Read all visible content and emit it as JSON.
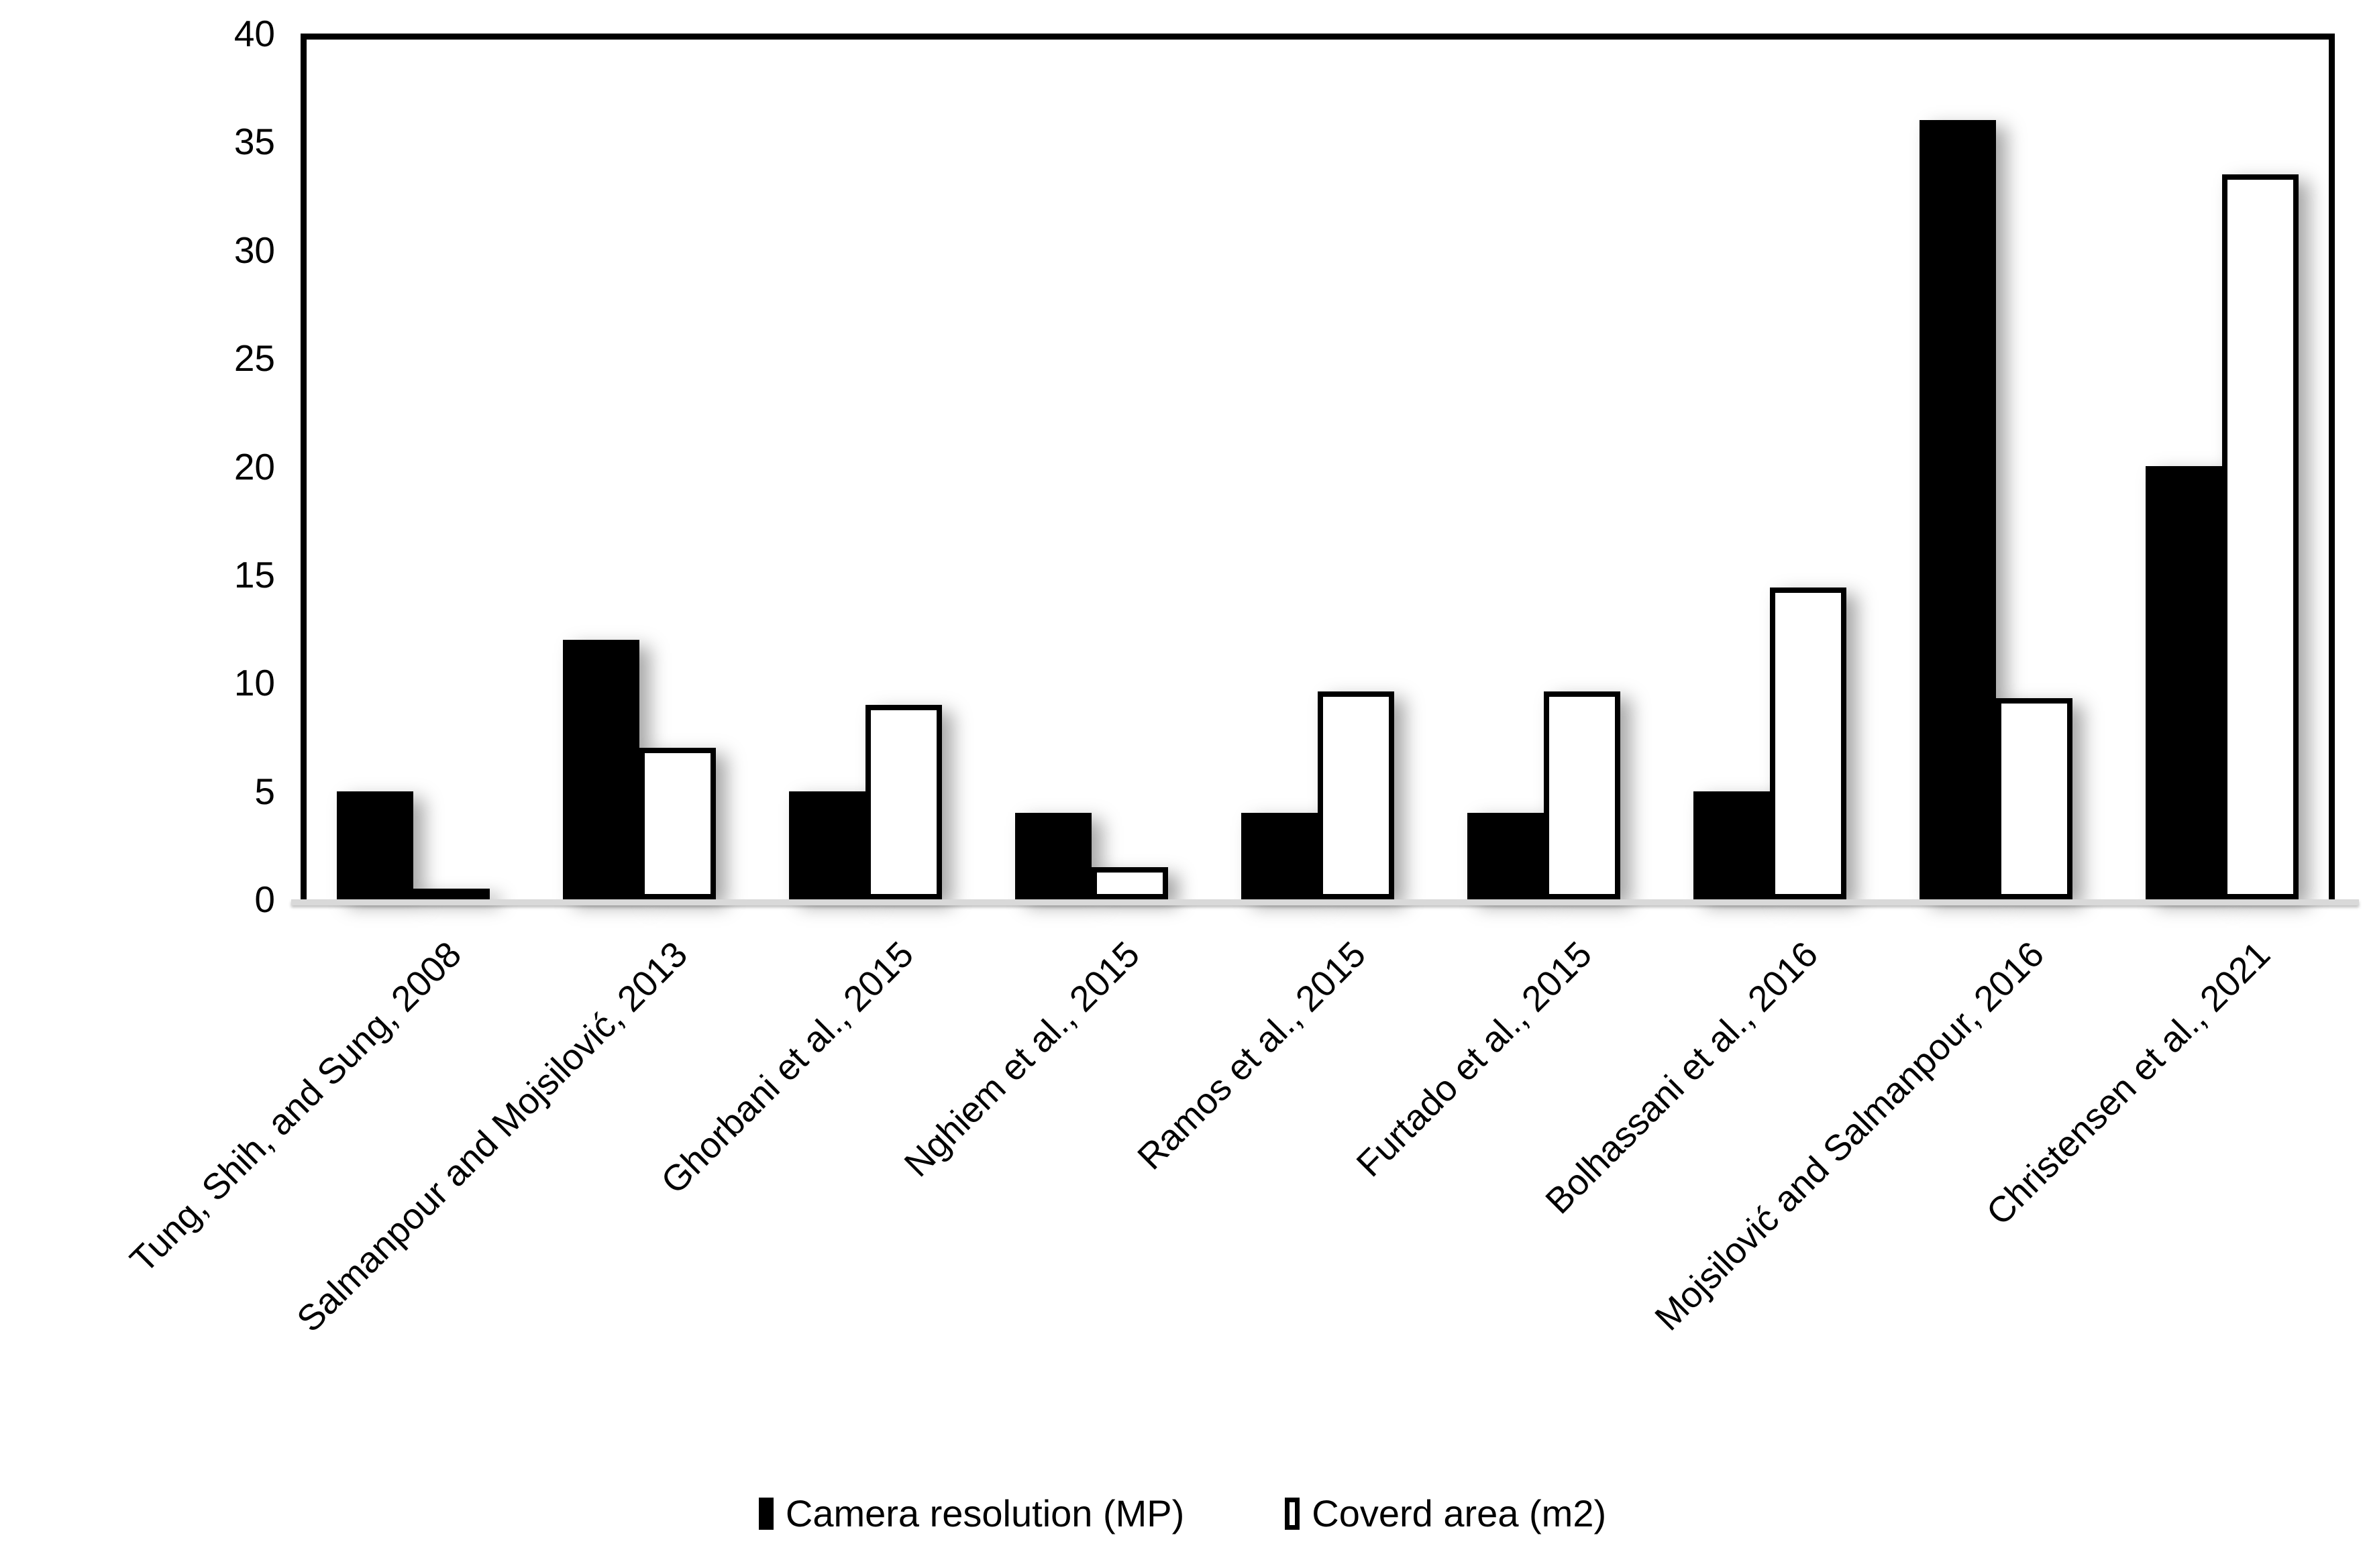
{
  "chart_data": {
    "type": "bar",
    "title": "",
    "xlabel": "",
    "ylabel": "",
    "categories": [
      "Tung, Shih, and Sung, 2008",
      "Salmanpour and Mojsilović, 2013",
      "Ghorbani et al., 2015",
      "Nghiem et al., 2015",
      "Ramos et al., 2015",
      "Furtado et al., 2015",
      "Bolhassani et al., 2016",
      "Mojsilović and Salmanpour, 2016",
      "Christensen et al., 2021"
    ],
    "series": [
      {
        "name": "Camera resolution (MP)",
        "fill": "#000000",
        "outline": "#000000",
        "values": [
          5,
          12,
          5,
          4,
          4,
          4,
          5,
          36,
          20
        ]
      },
      {
        "name": "Coverd area (m2)",
        "fill": "#ffffff",
        "outline": "#000000",
        "values": [
          0.2,
          7,
          9,
          1.5,
          9.6,
          9.6,
          14.4,
          9.3,
          33.5
        ]
      }
    ],
    "ylim": [
      0,
      40
    ],
    "ytick_step": 5,
    "yticks": [
      "0",
      "5",
      "10",
      "15",
      "20",
      "25",
      "30",
      "35",
      "40"
    ],
    "grid": false,
    "legend_position": "bottom",
    "axis_line_color": "#d9d9d9",
    "frame_color": "#000000",
    "x_label_rotation_deg": -45
  }
}
